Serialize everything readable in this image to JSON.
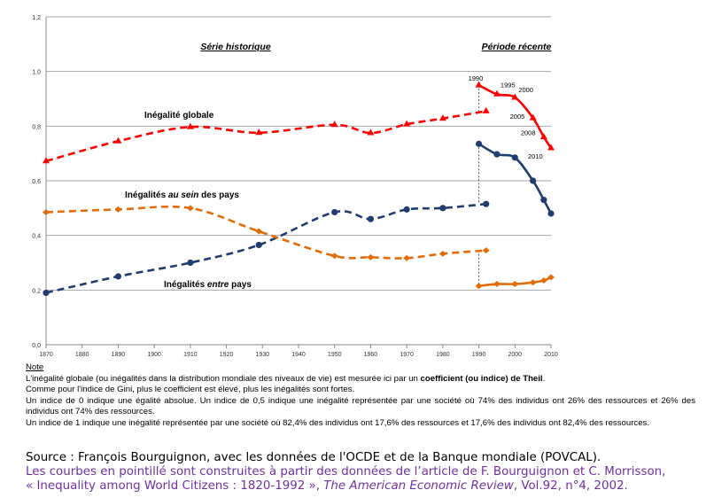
{
  "chart_data": {
    "type": "line",
    "ylim": [
      0,
      1.2
    ],
    "yticks": [
      "0,0",
      "0,2",
      "0,4",
      "0,6",
      "0,8",
      "1,0",
      "1,2"
    ],
    "ytick_values": [
      0,
      0.2,
      0.4,
      0.6,
      0.8,
      1.0,
      1.2
    ],
    "xlim": [
      1870,
      2010
    ],
    "xticks": [
      "1870",
      "1880",
      "1890",
      "1900",
      "1910",
      "1920",
      "1930",
      "1940",
      "1950",
      "1960",
      "1970",
      "1980",
      "1990",
      "2000",
      "2010"
    ],
    "section_labels": {
      "historic": "Série historique",
      "recent": "Période récente"
    },
    "series": [
      {
        "name": "Inégalité globale",
        "color": "#ff0000",
        "marker": "triangle",
        "dashed": true,
        "x": [
          1870,
          1890,
          1910,
          1929,
          1950,
          1960,
          1970,
          1980,
          1992
        ],
        "values": [
          0.672,
          0.745,
          0.797,
          0.776,
          0.805,
          0.775,
          0.807,
          0.828,
          0.855
        ]
      },
      {
        "name": "Inégalité globale (récente)",
        "color": "#ff0000",
        "marker": "triangle",
        "dashed": false,
        "x": [
          1990,
          1995,
          2000,
          2005,
          2008,
          2010
        ],
        "values": [
          0.95,
          0.917,
          0.905,
          0.83,
          0.76,
          0.72
        ],
        "point_labels": [
          "1990",
          "1995",
          "2000",
          "2005",
          "2008",
          "2010"
        ]
      },
      {
        "name": "Inégalités au sein des pays",
        "color": "#1f3d6e",
        "marker": "circle",
        "dashed": true,
        "x": [
          1870,
          1890,
          1910,
          1929,
          1950,
          1960,
          1970,
          1980,
          1992
        ],
        "values": [
          0.19,
          0.25,
          0.3,
          0.365,
          0.485,
          0.46,
          0.495,
          0.5,
          0.515
        ]
      },
      {
        "name": "Inégalités au sein des pays (récente)",
        "color": "#1f3d6e",
        "marker": "circle",
        "dashed": false,
        "x": [
          1990,
          1995,
          2000,
          2005,
          2008,
          2010
        ],
        "values": [
          0.735,
          0.697,
          0.685,
          0.6,
          0.53,
          0.48
        ]
      },
      {
        "name": "Inégalités entre pays",
        "color": "#e36c09",
        "marker": "diamond",
        "dashed": true,
        "x": [
          1870,
          1890,
          1910,
          1929,
          1950,
          1960,
          1970,
          1980,
          1992
        ],
        "values": [
          0.485,
          0.495,
          0.5,
          0.415,
          0.325,
          0.32,
          0.317,
          0.333,
          0.345
        ]
      },
      {
        "name": "Inégalités entre pays (récente)",
        "color": "#e36c09",
        "marker": "diamond",
        "dashed": false,
        "x": [
          1990,
          1995,
          2000,
          2005,
          2008,
          2010
        ],
        "values": [
          0.215,
          0.222,
          0.222,
          0.228,
          0.235,
          0.247
        ]
      }
    ],
    "annotations": {
      "global": "Inégalité globale",
      "within_pre": "Inégalités ",
      "within_em": "au sein",
      "within_post": " des pays",
      "between_pre": "Inégalités ",
      "between_em": "entre",
      "between_post": " pays"
    }
  },
  "note": {
    "title": "Note",
    "l1a": "L'inégalité globale (ou inégalités dans la distribution mondiale des niveaux de vie) est mesurée ici par un ",
    "l1b": "coefficient (ou indice) de Theil",
    "l1c": ".",
    "l2": "Comme pour l'indice de Gini, plus le coefficient est élevé, plus les inégalités sont fortes.",
    "l3": "Un indice de 0 indique une égalité absolue. Un indice de 0,5 indique une inégalité représentée par une société où 74% des individus ont 26% des ressources et 26% des individus ont 74% des ressources.",
    "l4": "Un indice de 1 indique une inégalité représentée par une société où 82,4% des individus ont 17,6% des ressources et 17,6% des individus ont 82,4% des ressources."
  },
  "source": {
    "l1": "Source : François Bourguignon, avec les données de l'OCDE et de la Banque mondiale (POVCAL).",
    "l2": "Les courbes en pointillé sont construites à partir des données de l’article de F. Bourguignon et C. Morrisson,",
    "l3a": "« Inequality among World Citizens : 1820-1992 », ",
    "l3b": "The American Economic Review",
    "l3c": ", Vol.92, n°4, 2002."
  }
}
